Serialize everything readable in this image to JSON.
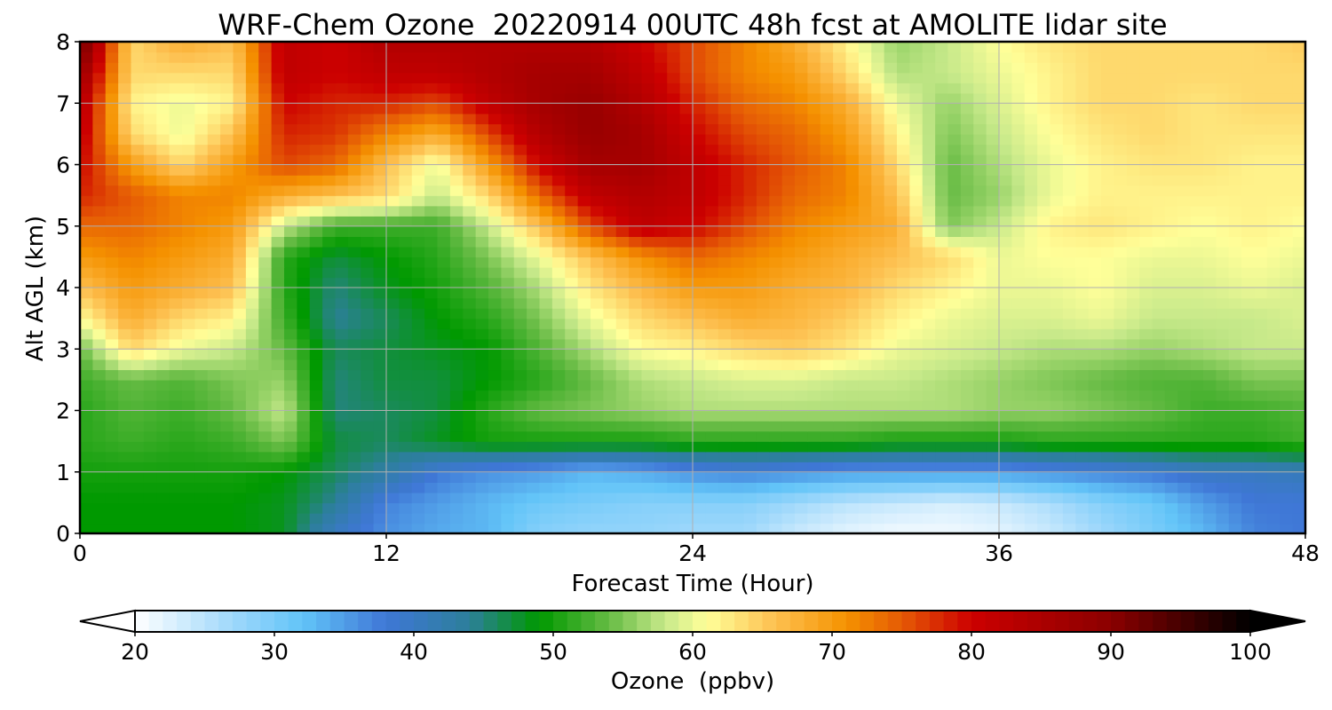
{
  "chart_data": {
    "type": "heatmap",
    "title": "WRF-Chem Ozone  20220914 00UTC 48h fcst at AMOLITE lidar site",
    "xlabel": "Forecast Time (Hour)",
    "ylabel": "Alt AGL (km)",
    "xlim": [
      0,
      48
    ],
    "ylim": [
      0,
      8
    ],
    "x_ticks": [
      "0",
      "12",
      "24",
      "36",
      "48"
    ],
    "y_ticks": [
      "0",
      "1",
      "2",
      "3",
      "4",
      "5",
      "6",
      "7",
      "8"
    ],
    "grid": true,
    "colorbar": {
      "label": "Ozone  (ppbv)",
      "range": [
        20,
        100
      ],
      "ticks": [
        "20",
        "30",
        "40",
        "50",
        "60",
        "70",
        "80",
        "90",
        "100"
      ],
      "extend": "both",
      "colormap_stops": [
        {
          "value": 20,
          "color": "#ffffff"
        },
        {
          "value": 27,
          "color": "#9fd8fb"
        },
        {
          "value": 32,
          "color": "#62c4f8"
        },
        {
          "value": 38,
          "color": "#3f77d6"
        },
        {
          "value": 44,
          "color": "#2c7f9a"
        },
        {
          "value": 49,
          "color": "#009900"
        },
        {
          "value": 54,
          "color": "#66bb44"
        },
        {
          "value": 58,
          "color": "#c7e98a"
        },
        {
          "value": 61,
          "color": "#ffff99"
        },
        {
          "value": 66,
          "color": "#fdbf4f"
        },
        {
          "value": 71,
          "color": "#f59200"
        },
        {
          "value": 75,
          "color": "#e55a05"
        },
        {
          "value": 80,
          "color": "#cc0000"
        },
        {
          "value": 90,
          "color": "#8b0000"
        },
        {
          "value": 100,
          "color": "#000000"
        }
      ]
    },
    "x_hours": [
      0,
      2,
      4,
      6,
      8,
      10,
      12,
      14,
      16,
      18,
      20,
      22,
      24,
      26,
      28,
      30,
      32,
      34,
      36,
      38,
      40,
      42,
      44,
      46,
      48
    ],
    "y_km": [
      0,
      0.5,
      1,
      1.5,
      2,
      2.5,
      3,
      3.5,
      4,
      4.5,
      5,
      5.5,
      6,
      6.5,
      7,
      7.5,
      8
    ],
    "ozone_ppbv": [
      [
        49,
        49,
        49,
        49,
        48,
        40,
        36,
        34,
        33,
        29,
        28,
        28,
        27,
        27,
        24,
        22,
        21,
        21,
        22,
        24,
        27,
        30,
        33,
        37,
        38
      ],
      [
        49,
        49,
        49,
        49,
        48,
        44,
        37,
        35,
        33,
        31,
        30,
        29,
        29,
        29,
        27,
        25,
        24,
        23,
        24,
        26,
        29,
        31,
        35,
        38,
        38
      ],
      [
        50,
        50,
        50,
        50,
        49,
        46,
        43,
        38,
        36,
        35,
        33,
        34,
        36,
        37,
        36,
        35,
        35,
        35,
        35,
        36,
        37,
        38,
        40,
        40,
        41
      ],
      [
        51,
        52,
        51,
        52,
        55,
        47,
        46,
        48,
        50,
        50,
        50,
        50,
        51,
        51,
        51,
        51,
        50,
        50,
        50,
        51,
        51,
        51,
        51,
        51,
        52
      ],
      [
        51,
        53,
        52,
        54,
        58,
        45,
        46,
        47,
        51,
        54,
        55,
        56,
        57,
        57,
        57,
        57,
        57,
        57,
        56,
        56,
        55,
        54,
        52,
        52,
        53
      ],
      [
        52,
        54,
        53,
        55,
        56,
        45,
        47,
        47,
        49,
        51,
        54,
        57,
        58,
        59,
        59,
        58,
        58,
        57,
        56,
        55,
        54,
        53,
        53,
        55,
        55
      ],
      [
        54,
        64,
        60,
        58,
        54,
        46,
        47,
        48,
        49,
        53,
        57,
        61,
        62,
        64,
        65,
        63,
        60,
        59,
        58,
        57,
        57,
        56,
        57,
        58,
        58
      ],
      [
        61,
        68,
        64,
        62,
        52,
        44,
        46,
        49,
        51,
        55,
        60,
        64,
        66,
        68,
        67,
        65,
        62,
        60,
        59,
        59,
        60,
        58,
        58,
        58,
        59
      ],
      [
        66,
        70,
        68,
        66,
        51,
        45,
        48,
        50,
        53,
        57,
        63,
        67,
        70,
        70,
        68,
        67,
        64,
        62,
        60,
        60,
        61,
        59,
        59,
        60,
        59
      ],
      [
        70,
        72,
        70,
        68,
        51,
        47,
        49,
        51,
        55,
        60,
        66,
        71,
        74,
        72,
        70,
        68,
        66,
        64,
        60,
        61,
        61,
        60,
        60,
        61,
        60
      ],
      [
        74,
        74,
        72,
        70,
        58,
        52,
        52,
        52,
        58,
        66,
        76,
        82,
        80,
        76,
        72,
        70,
        68,
        55,
        58,
        62,
        63,
        62,
        61,
        62,
        61
      ],
      [
        78,
        75,
        72,
        72,
        68,
        66,
        64,
        58,
        64,
        74,
        82,
        84,
        82,
        78,
        74,
        72,
        66,
        54,
        56,
        60,
        62,
        62,
        62,
        62,
        62
      ],
      [
        80,
        70,
        64,
        70,
        76,
        74,
        66,
        60,
        70,
        80,
        86,
        86,
        82,
        78,
        75,
        72,
        64,
        54,
        57,
        60,
        62,
        63,
        63,
        62,
        62
      ],
      [
        82,
        64,
        60,
        66,
        78,
        77,
        72,
        68,
        76,
        84,
        88,
        86,
        80,
        76,
        74,
        70,
        62,
        55,
        58,
        61,
        63,
        64,
        63,
        63,
        63
      ],
      [
        84,
        62,
        60,
        62,
        80,
        78,
        78,
        76,
        82,
        86,
        88,
        84,
        78,
        74,
        72,
        68,
        60,
        56,
        59,
        62,
        64,
        64,
        63,
        64,
        64
      ],
      [
        88,
        64,
        64,
        64,
        82,
        80,
        82,
        82,
        84,
        86,
        86,
        82,
        76,
        72,
        70,
        64,
        57,
        58,
        60,
        62,
        64,
        64,
        64,
        64,
        64
      ],
      [
        94,
        64,
        68,
        66,
        82,
        80,
        84,
        84,
        84,
        84,
        84,
        80,
        76,
        72,
        68,
        62,
        56,
        58,
        61,
        63,
        64,
        64,
        64,
        64,
        65
      ]
    ]
  }
}
